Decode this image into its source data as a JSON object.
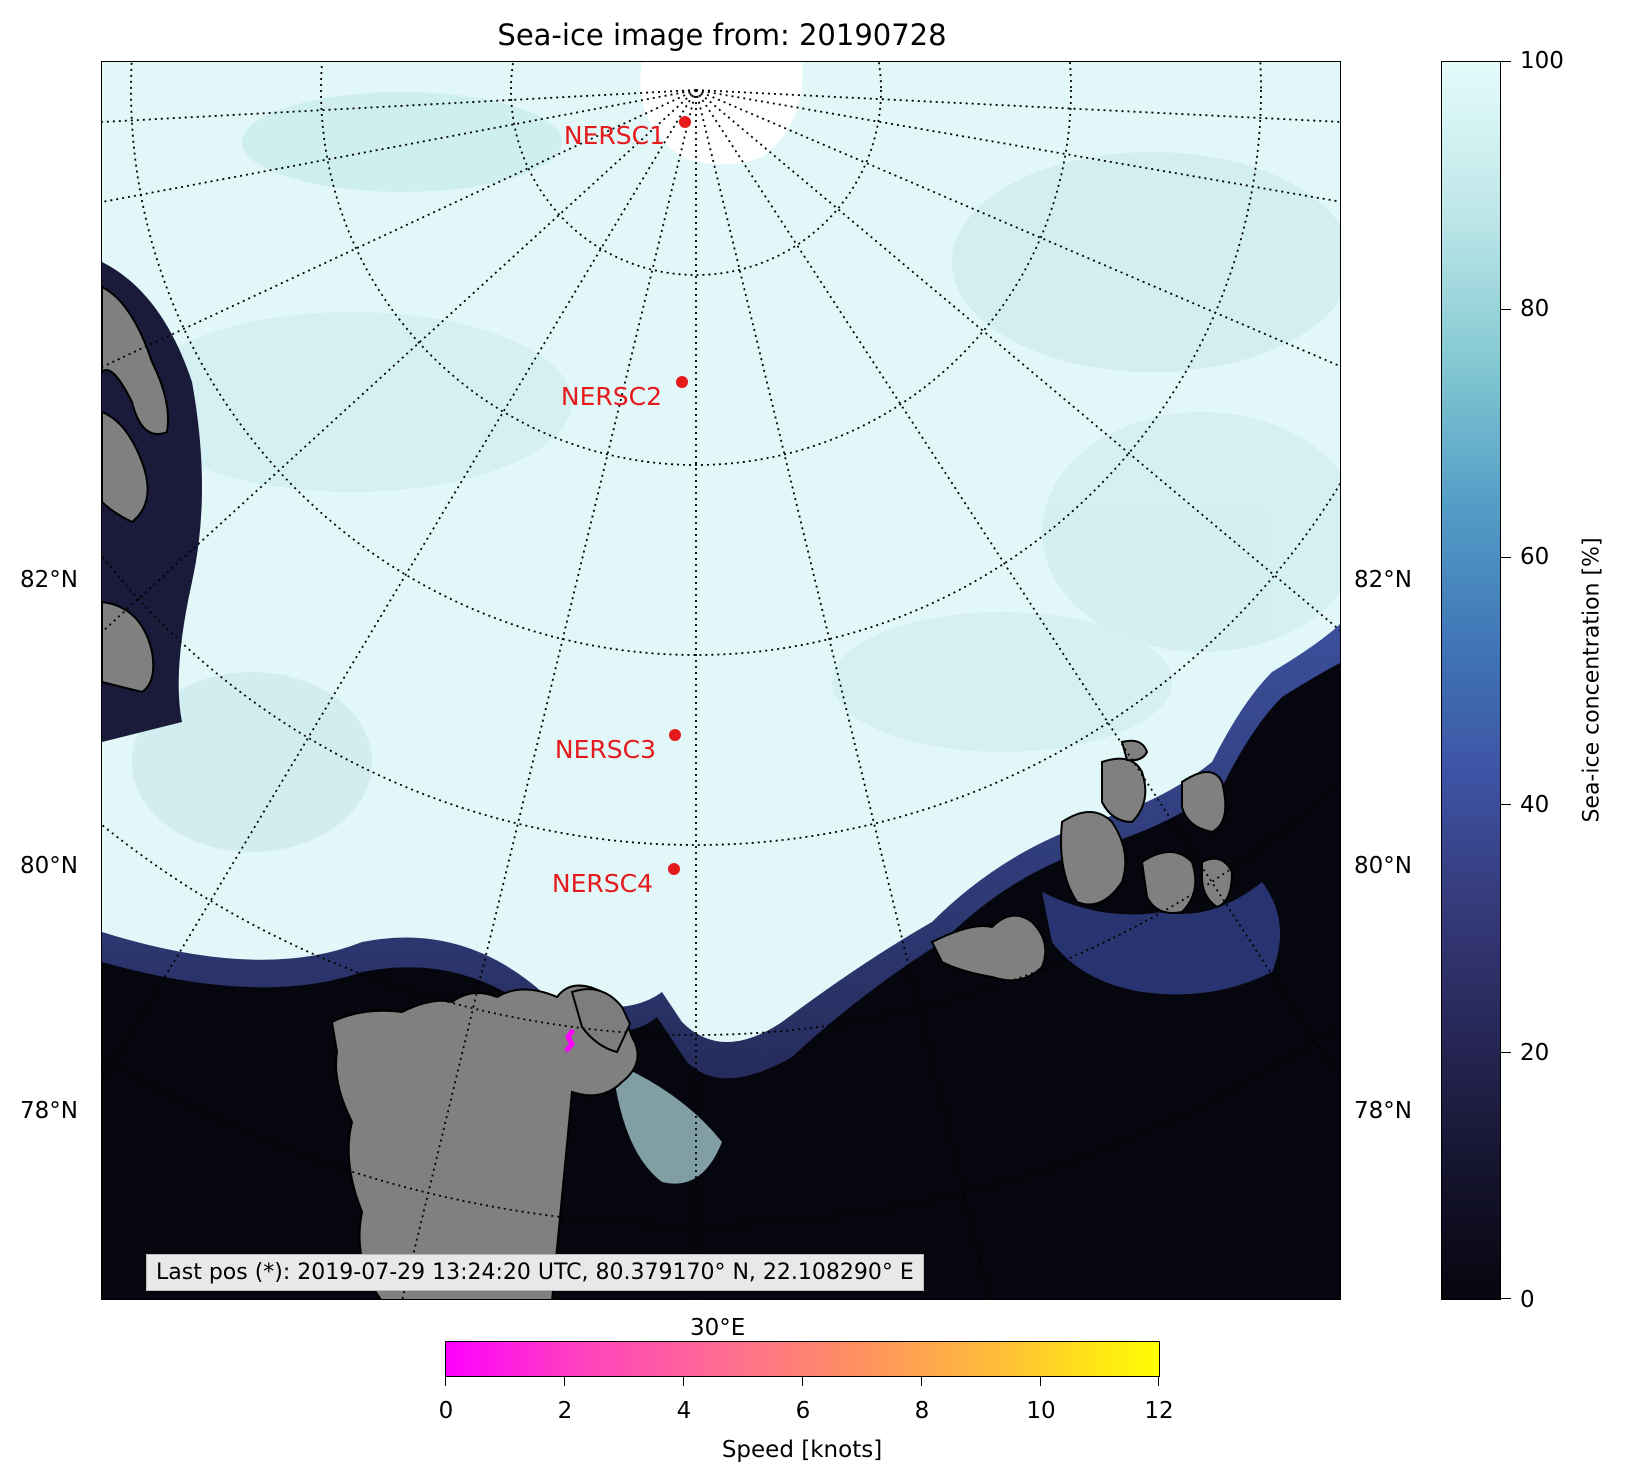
{
  "title": "Sea-ice image from: 20190728",
  "lat_labels": [
    "82°N",
    "80°N",
    "78°N"
  ],
  "lon_label": "30°E",
  "stations": [
    {
      "name": "NERSC1"
    },
    {
      "name": "NERSC2"
    },
    {
      "name": "NERSC3"
    },
    {
      "name": "NERSC4"
    }
  ],
  "last_position": "Last pos (*): 2019-07-29 13:24:20 UTC, 80.379170° N, 22.108290° E",
  "ice_colorbar": {
    "label": "Sea-ice concentration [%]",
    "ticks": [
      "100",
      "80",
      "60",
      "40",
      "20",
      "0"
    ],
    "range": [
      0,
      100
    ]
  },
  "speed_colorbar": {
    "label": "Speed [knots]",
    "ticks": [
      "0",
      "2",
      "4",
      "6",
      "8",
      "10",
      "12"
    ],
    "range": [
      0,
      12
    ]
  },
  "colors": {
    "station_marker": "#e41a1c",
    "station_label": "#e41a1c",
    "track": "#ff00ff",
    "land": "#808080",
    "open_water": "#06060f",
    "ice_high": "#e4fbfa"
  }
}
